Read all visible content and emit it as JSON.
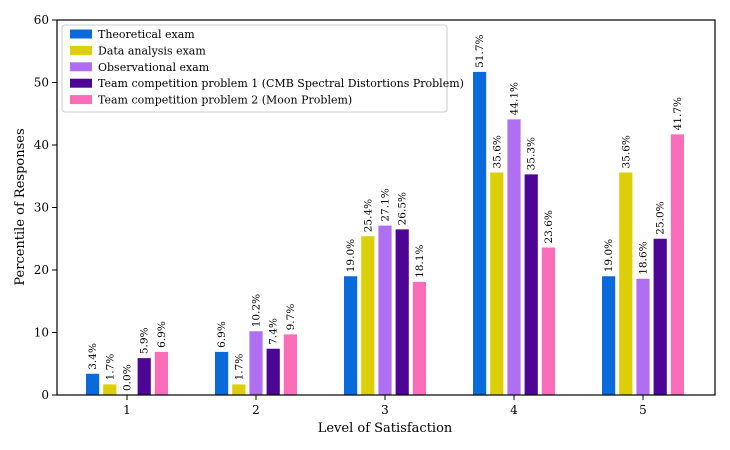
{
  "chart_data": {
    "type": "bar",
    "title": "",
    "xlabel": "Level of Satisfaction",
    "ylabel": "Percentile of Responses",
    "ylim": [
      0,
      60
    ],
    "yticks": [
      0,
      10,
      20,
      30,
      40,
      50,
      60
    ],
    "categories": [
      "1",
      "2",
      "3",
      "4",
      "5"
    ],
    "legend_position": "top-left",
    "series": [
      {
        "name": "Theoretical exam",
        "color": "#0a6ad9",
        "values": [
          3.4,
          6.9,
          19.0,
          51.7,
          19.0
        ],
        "labels": [
          "3.4%",
          "6.9%",
          "19.0%",
          "51.7%",
          "19.0%"
        ]
      },
      {
        "name": "Data analysis exam",
        "color": "#dccf07",
        "values": [
          1.7,
          1.7,
          25.4,
          35.6,
          35.6
        ],
        "labels": [
          "1.7%",
          "1.7%",
          "25.4%",
          "35.6%",
          "35.6%"
        ]
      },
      {
        "name": "Observational exam",
        "color": "#b06ef0",
        "values": [
          0.0,
          10.2,
          27.1,
          44.1,
          18.6
        ],
        "labels": [
          "0.0%",
          "10.2%",
          "27.1%",
          "44.1%",
          "18.6%"
        ]
      },
      {
        "name": "Team competition problem 1 (CMB Spectral Distortions Problem)",
        "color": "#4c0594",
        "values": [
          5.9,
          7.4,
          26.5,
          35.3,
          25.0
        ],
        "labels": [
          "5.9%",
          "7.4%",
          "26.5%",
          "35.3%",
          "25.0%"
        ]
      },
      {
        "name": "Team competition problem 2 (Moon Problem)",
        "color": "#fb6db8",
        "values": [
          6.9,
          9.7,
          18.1,
          23.6,
          41.7
        ],
        "labels": [
          "6.9%",
          "9.7%",
          "18.1%",
          "23.6%",
          "41.7%"
        ]
      }
    ]
  }
}
